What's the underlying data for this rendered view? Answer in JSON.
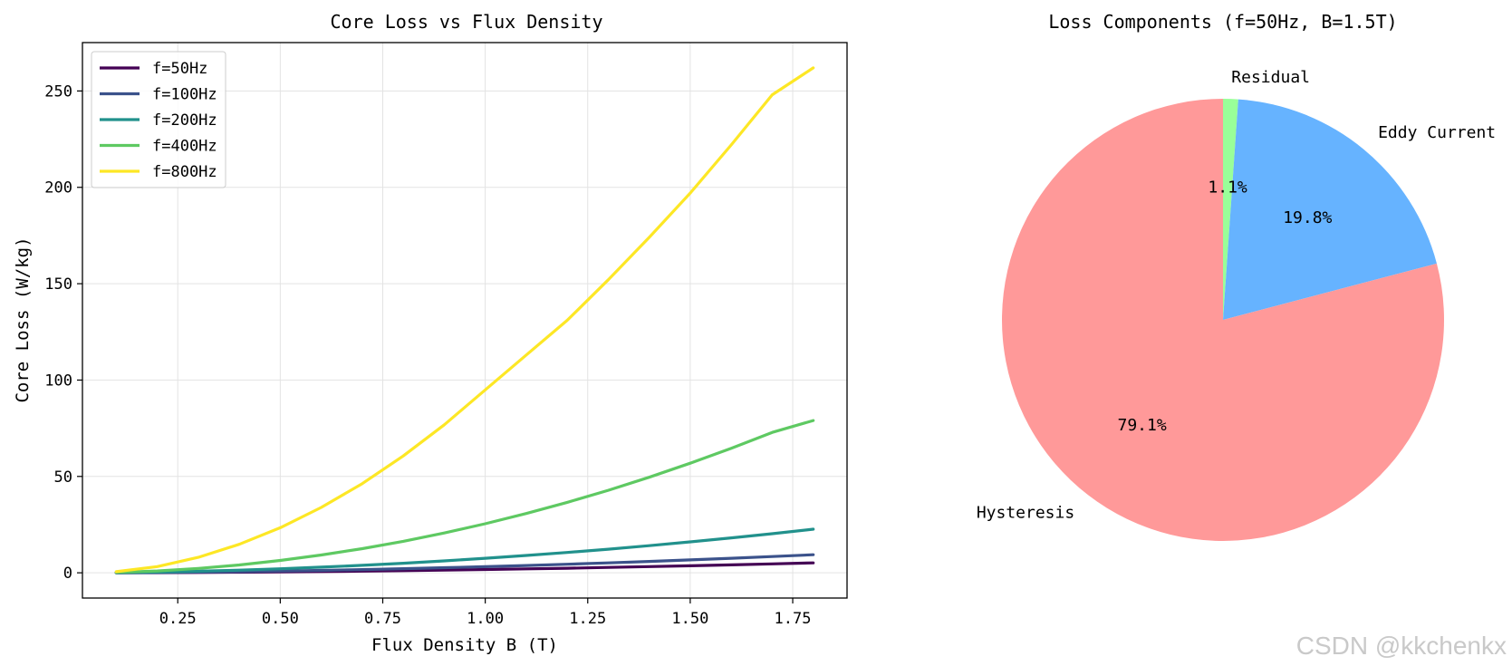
{
  "chart_data": [
    {
      "type": "line",
      "title": "Core Loss vs Flux Density",
      "xlabel": "Flux Density B (T)",
      "ylabel": "Core Loss (W/kg)",
      "xlim": [
        0.0175,
        1.8825
      ],
      "ylim": [
        -13.1,
        275.1
      ],
      "xticks": [
        0.25,
        0.5,
        0.75,
        1.0,
        1.25,
        1.5,
        1.75
      ],
      "xtick_labels": [
        "0.25",
        "0.50",
        "0.75",
        "1.00",
        "1.25",
        "1.50",
        "1.75"
      ],
      "yticks": [
        0,
        50,
        100,
        150,
        200,
        250
      ],
      "ytick_labels": [
        "0",
        "50",
        "100",
        "150",
        "200",
        "250"
      ],
      "grid": true,
      "legend_position": "top-left",
      "x": [
        0.1,
        0.2,
        0.3,
        0.4,
        0.5,
        0.6,
        0.7,
        0.8,
        0.9,
        1.0,
        1.1,
        1.2,
        1.3,
        1.4,
        1.5,
        1.6,
        1.7,
        1.8
      ],
      "series": [
        {
          "name": "f=50Hz",
          "color": "#440154",
          "values": [
            0.02,
            0.08,
            0.17,
            0.3,
            0.45,
            0.64,
            0.86,
            1.11,
            1.39,
            1.69,
            2.03,
            2.39,
            2.78,
            3.2,
            3.64,
            4.11,
            4.61,
            5.13
          ]
        },
        {
          "name": "f=100Hz",
          "color": "#3b528b",
          "values": [
            0.04,
            0.16,
            0.35,
            0.59,
            0.89,
            1.25,
            1.66,
            2.12,
            2.63,
            3.19,
            3.8,
            4.45,
            5.16,
            5.91,
            6.71,
            7.55,
            8.44,
            9.37
          ]
        },
        {
          "name": "f=200Hz",
          "color": "#21918c",
          "values": [
            0.08,
            0.36,
            0.8,
            1.37,
            2.08,
            2.92,
            3.88,
            4.97,
            6.18,
            7.52,
            8.98,
            10.56,
            12.26,
            14.08,
            16.03,
            18.1,
            20.29,
            22.61
          ]
        },
        {
          "name": "f=400Hz",
          "color": "#5ec962",
          "values": [
            0.2,
            0.96,
            2.26,
            4.08,
            6.4,
            9.22,
            12.54,
            16.35,
            20.66,
            25.46,
            30.75,
            36.54,
            42.82,
            49.59,
            56.85,
            64.61,
            72.86,
            79.0
          ]
        },
        {
          "name": "f=800Hz",
          "color": "#fde725",
          "values": [
            0.6,
            3.2,
            8.0,
            14.8,
            23.4,
            33.9,
            46.3,
            60.6,
            76.8,
            94.9,
            113.0,
            131.0,
            152.0,
            174.0,
            197.0,
            222.0,
            248.0,
            262.0
          ]
        }
      ]
    },
    {
      "type": "pie",
      "title": "Loss Components (f=50Hz, B=1.5T)",
      "slices": [
        {
          "label": "Hysteresis",
          "value": 79.1,
          "pct_label": "79.1%",
          "color": "#ff9999"
        },
        {
          "label": "Eddy Current",
          "value": 19.8,
          "pct_label": "19.8%",
          "color": "#66b3ff"
        },
        {
          "label": "Residual",
          "value": 1.1,
          "pct_label": "1.1%",
          "color": "#99ff99"
        }
      ]
    }
  ],
  "watermark": "CSDN @kkchenkx"
}
